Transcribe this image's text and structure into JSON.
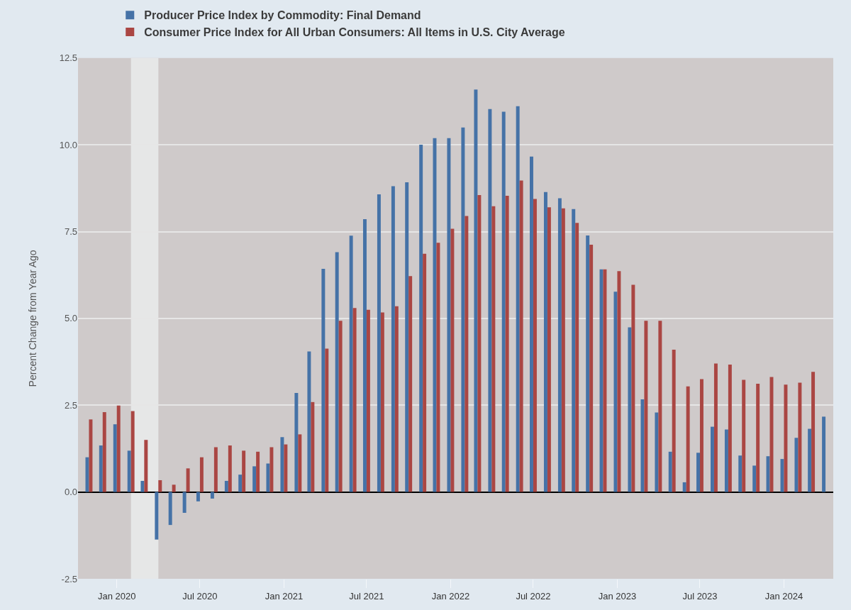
{
  "chart_data": {
    "type": "bar",
    "ylabel": "Percent Change from Year Ago",
    "x": [
      "2019-11",
      "2019-12",
      "2020-01",
      "2020-02",
      "2020-03",
      "2020-04",
      "2020-05",
      "2020-06",
      "2020-07",
      "2020-08",
      "2020-09",
      "2020-10",
      "2020-11",
      "2020-12",
      "2021-01",
      "2021-02",
      "2021-03",
      "2021-04",
      "2021-05",
      "2021-06",
      "2021-07",
      "2021-08",
      "2021-09",
      "2021-10",
      "2021-11",
      "2021-12",
      "2022-01",
      "2022-02",
      "2022-03",
      "2022-04",
      "2022-05",
      "2022-06",
      "2022-07",
      "2022-08",
      "2022-09",
      "2022-10",
      "2022-11",
      "2022-12",
      "2023-01",
      "2023-02",
      "2023-03",
      "2023-04",
      "2023-05",
      "2023-06",
      "2023-07",
      "2023-08",
      "2023-09",
      "2023-10",
      "2023-11",
      "2023-12",
      "2024-01",
      "2024-02",
      "2024-03",
      "2024-04"
    ],
    "series": [
      {
        "name": "Producer Price Index by Commodity: Final Demand",
        "color": "#4572a7",
        "values": [
          1.0,
          1.34,
          1.95,
          1.19,
          0.32,
          -1.37,
          -0.95,
          -0.6,
          -0.27,
          -0.19,
          0.32,
          0.5,
          0.74,
          0.82,
          1.58,
          2.85,
          4.05,
          6.43,
          6.91,
          7.38,
          7.86,
          8.57,
          8.81,
          8.92,
          10.0,
          10.19,
          10.19,
          10.5,
          11.59,
          11.03,
          10.95,
          11.11,
          9.66,
          8.64,
          8.46,
          8.15,
          7.39,
          6.41,
          5.77,
          4.74,
          2.67,
          2.29,
          1.16,
          0.28,
          1.13,
          1.88,
          1.8,
          1.05,
          0.76,
          1.03,
          0.95,
          1.56,
          1.82,
          2.17
        ]
      },
      {
        "name": "Consumer Price Index for All Urban Consumers: All Items in U.S. City Average",
        "color": "#aa4643",
        "values": [
          2.09,
          2.3,
          2.49,
          2.33,
          1.5,
          0.34,
          0.21,
          0.68,
          1.0,
          1.29,
          1.34,
          1.19,
          1.16,
          1.29,
          1.37,
          1.66,
          2.59,
          4.13,
          4.93,
          5.3,
          5.25,
          5.17,
          5.35,
          6.22,
          6.86,
          7.18,
          7.58,
          7.95,
          8.55,
          8.23,
          8.53,
          8.97,
          8.44,
          8.2,
          8.17,
          7.75,
          7.12,
          6.41,
          6.36,
          5.97,
          4.93,
          4.93,
          4.1,
          3.04,
          3.25,
          3.7,
          3.67,
          3.23,
          3.12,
          3.31,
          3.09,
          3.15,
          3.46,
          null
        ]
      }
    ],
    "xlim": [
      "2019-10-08",
      "2024-04-18"
    ],
    "xticks": [
      {
        "value": "2020-01",
        "label": "Jan 2020"
      },
      {
        "value": "2020-07",
        "label": "Jul 2020"
      },
      {
        "value": "2021-01",
        "label": "Jan 2021"
      },
      {
        "value": "2021-07",
        "label": "Jul 2021"
      },
      {
        "value": "2022-01",
        "label": "Jan 2022"
      },
      {
        "value": "2022-07",
        "label": "Jul 2022"
      },
      {
        "value": "2023-01",
        "label": "Jan 2023"
      },
      {
        "value": "2023-07",
        "label": "Jul 2023"
      },
      {
        "value": "2024-01",
        "label": "Jan 2024"
      }
    ],
    "ylim": [
      -2.5,
      12.5
    ],
    "yticks": [
      -2.5,
      {
        "value": 0,
        "label": "0.0"
      },
      2.5,
      {
        "value": 5,
        "label": "5.0"
      },
      7.5,
      {
        "value": 10,
        "label": "10.0"
      },
      12.5
    ],
    "bands": [
      {
        "axis": "x",
        "from": "2020-02",
        "to": "2020-04",
        "color": "#e6e7e7"
      }
    ],
    "grid": "y",
    "legend": "top left"
  }
}
